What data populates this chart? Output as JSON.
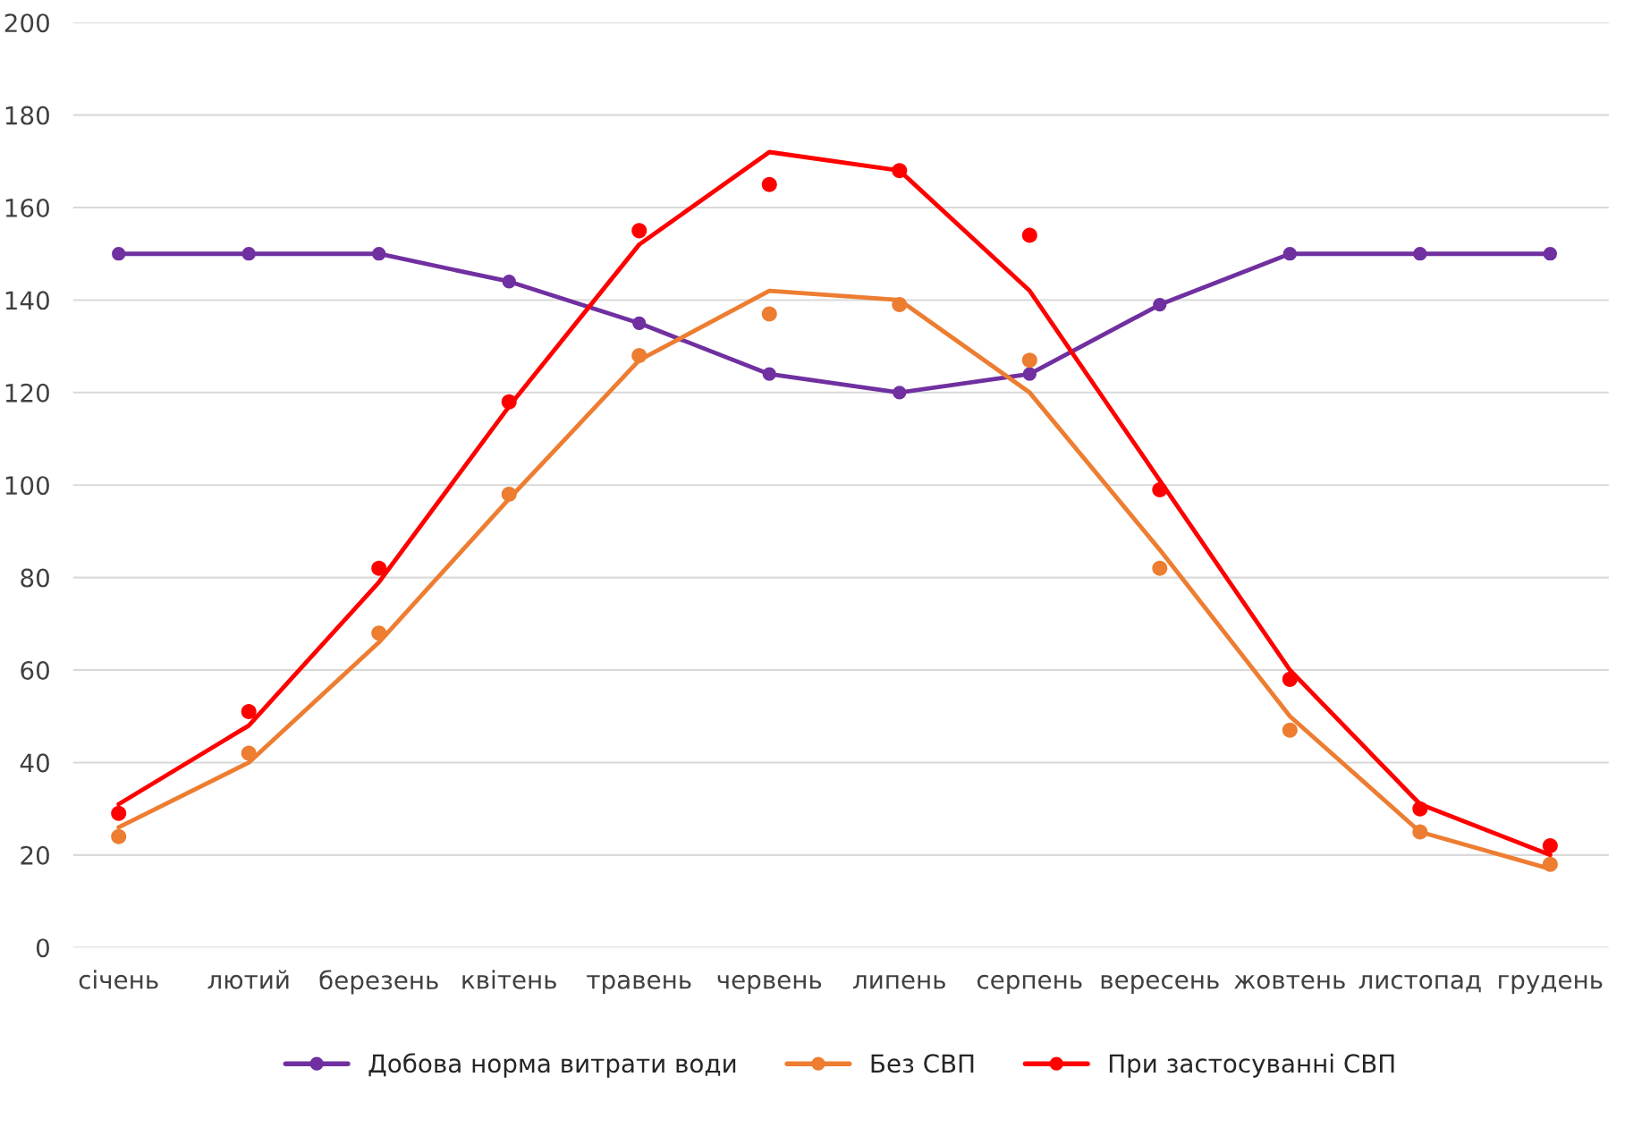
{
  "chart_data": {
    "type": "line",
    "categories": [
      "січень",
      "лютий",
      "березень",
      "квітень",
      "травень",
      "червень",
      "липень",
      "серпень",
      "вересень",
      "жовтень",
      "листопад",
      "грудень"
    ],
    "series": [
      {
        "name": "Добова норма витрати води",
        "marker": "circle",
        "color": "#7030a0",
        "values": [
          150,
          150,
          150,
          144,
          135,
          124,
          120,
          124,
          139,
          150,
          150,
          150
        ]
      },
      {
        "marker": "none",
        "color": "#ed7d31",
        "values": [
          26,
          40,
          66,
          97,
          127,
          142,
          140,
          120,
          86,
          50,
          25,
          17
        ]
      },
      {
        "marker": "none",
        "color": "#ff0000",
        "values": [
          31,
          48,
          79,
          117,
          152,
          172,
          168,
          142,
          101,
          60,
          31,
          20
        ]
      },
      {
        "name": "Без СВП",
        "type": "scatter",
        "marker": "circle",
        "color": "#ed7d31",
        "values": [
          24,
          42,
          68,
          98,
          128,
          137,
          139,
          127,
          82,
          47,
          25,
          18
        ]
      },
      {
        "name": "При застосуванні СВП",
        "type": "scatter",
        "marker": "circle",
        "color": "#ff0000",
        "values": [
          29,
          51,
          82,
          118,
          155,
          165,
          168,
          154,
          99,
          58,
          30,
          22
        ]
      }
    ],
    "ylim": [
      0,
      200
    ],
    "yticks": [
      0,
      20,
      40,
      60,
      80,
      100,
      120,
      140,
      160,
      180,
      200
    ],
    "grid": "y",
    "legend": "bottom"
  }
}
